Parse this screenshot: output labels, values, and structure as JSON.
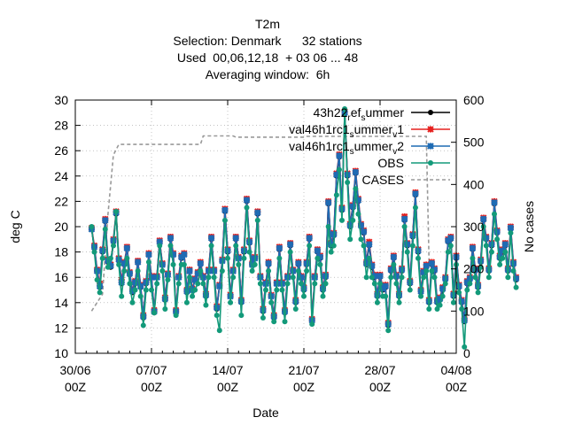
{
  "chart_data": {
    "type": "line",
    "title_lines": [
      "T2m",
      "Selection: Denmark      32 stations",
      "Used  00,06,12,18  + 03 06 ... 48",
      "Averaging window:  6h"
    ],
    "xlabel": "Date",
    "ylabel": "deg C",
    "y2label": "No cases",
    "x_ticks": [
      {
        "date": "2022-06-30",
        "line1": "30/06",
        "line2": "00Z"
      },
      {
        "date": "2022-07-07",
        "line1": "07/07",
        "line2": "00Z"
      },
      {
        "date": "2022-07-14",
        "line1": "14/07",
        "line2": "00Z"
      },
      {
        "date": "2022-07-21",
        "line1": "21/07",
        "line2": "00Z"
      },
      {
        "date": "2022-07-28",
        "line1": "28/07",
        "line2": "00Z"
      },
      {
        "date": "2022-08-04",
        "line1": "04/08",
        "line2": "00Z"
      }
    ],
    "xlim": [
      "2022-06-30T00:00",
      "2022-08-04T00:00"
    ],
    "ylim": [
      10,
      30
    ],
    "y_ticks": [
      10,
      12,
      14,
      16,
      18,
      20,
      22,
      24,
      26,
      28,
      30
    ],
    "y2lim": [
      0,
      600
    ],
    "y2_ticks": [
      0,
      100,
      200,
      300,
      400,
      500,
      600
    ],
    "grid": true,
    "legend_position": "top-right",
    "x_start": "2022-07-01T12:00",
    "x_step_hours": 6,
    "series": [
      {
        "name": "43h22 ref_summer",
        "legend_base": "43h22",
        "legend_parts": [
          [
            "r",
            "sub"
          ],
          [
            "ef",
            "base"
          ],
          [
            "s",
            "sub"
          ],
          [
            "ummer",
            "base"
          ]
        ],
        "color": "#000000",
        "marker": "circle",
        "values": [
          19.8,
          18.3,
          16.5,
          15.2,
          18.0,
          20.4,
          17.2,
          16.8,
          18.8,
          21.0,
          17.3,
          15.5,
          17.0,
          18.3,
          16.2,
          14.8,
          15.5,
          17.2,
          15.2,
          12.8,
          15.5,
          17.8,
          16.0,
          13.2,
          16.0,
          18.8,
          17.0,
          14.2,
          16.2,
          19.0,
          17.8,
          13.3,
          16.0,
          17.5,
          17.8,
          14.8,
          16.5,
          15.0,
          15.8,
          16.3,
          17.0,
          16.0,
          14.5,
          16.5,
          19.0,
          16.5,
          13.5,
          15.3,
          17.3,
          21.2,
          18.0,
          14.5,
          16.5,
          19.0,
          17.5,
          14.0,
          18.0,
          22.0,
          18.7,
          17.0,
          17.5,
          21.0,
          16.0,
          13.3,
          15.5,
          17.0,
          14.5,
          12.8,
          15.5,
          18.2,
          15.5,
          13.2,
          16.0,
          18.5,
          16.5,
          14.0,
          17.0,
          16.0,
          15.0,
          17.0,
          19.0,
          12.5,
          16.0,
          18.0,
          17.5,
          15.0,
          16.0,
          21.8,
          18.5,
          19.3,
          24.0,
          25.5,
          21.3,
          28.9,
          24.0,
          20.0,
          21.5,
          24.2,
          22.0,
          20.0,
          19.5,
          17.0,
          18.5,
          16.8,
          16.0,
          14.5,
          16.0,
          15.0,
          15.2,
          12.2,
          16.5,
          17.5,
          16.0,
          14.5,
          16.5,
          20.5,
          18.5,
          15.5,
          19.2,
          22.5,
          18.0,
          14.8,
          16.3,
          16.8,
          14.0,
          17.0,
          16.5,
          14.0,
          14.2,
          15.0,
          15.8,
          18.8,
          19.0,
          14.5,
          17.5,
          15.2,
          14.0,
          12.5,
          15.5,
          15.8,
          18.2,
          16.5,
          15.2,
          17.2,
          20.5,
          19.0,
          16.5,
          18.5,
          21.8,
          19.5,
          17.5,
          18.0,
          18.5,
          16.5,
          19.8,
          17.0,
          15.8
        ]
      },
      {
        "name": "val46h1rc1_summer_v1",
        "legend_base": "val46h1rc1",
        "legend_parts": [
          [
            "s",
            "sub"
          ],
          [
            "ummer",
            "base"
          ],
          [
            "v",
            "sub"
          ],
          [
            "1",
            "base"
          ]
        ],
        "color": "#e6201e",
        "marker": "cross",
        "values": [
          19.9,
          18.5,
          16.6,
          15.5,
          18.2,
          20.6,
          17.4,
          17.0,
          19.0,
          21.2,
          17.5,
          15.8,
          17.2,
          18.4,
          16.4,
          15.0,
          15.7,
          17.3,
          15.4,
          13.0,
          15.7,
          17.9,
          16.1,
          13.4,
          16.1,
          18.9,
          17.1,
          14.4,
          16.3,
          19.2,
          17.9,
          13.4,
          16.1,
          17.7,
          17.9,
          15.0,
          16.6,
          15.1,
          15.9,
          16.4,
          17.2,
          16.1,
          14.7,
          16.6,
          19.2,
          16.6,
          13.7,
          15.4,
          17.4,
          21.4,
          18.2,
          14.6,
          16.6,
          19.2,
          17.6,
          14.2,
          18.2,
          22.2,
          18.9,
          17.1,
          17.6,
          21.2,
          16.1,
          13.5,
          15.6,
          17.2,
          14.6,
          13.0,
          15.6,
          18.4,
          15.6,
          13.4,
          16.1,
          18.7,
          16.6,
          14.2,
          17.2,
          16.1,
          15.2,
          17.2,
          19.2,
          12.7,
          16.1,
          18.2,
          17.7,
          15.2,
          16.2,
          22.0,
          18.7,
          19.5,
          24.2,
          25.7,
          21.5,
          29.1,
          24.2,
          20.2,
          21.7,
          24.4,
          22.2,
          20.2,
          19.7,
          17.2,
          18.8,
          17.0,
          16.2,
          14.7,
          16.2,
          15.2,
          15.4,
          12.4,
          16.7,
          17.7,
          16.2,
          14.7,
          16.7,
          20.8,
          18.7,
          15.7,
          19.4,
          22.7,
          18.2,
          15.0,
          16.5,
          17.0,
          14.2,
          17.2,
          16.7,
          14.2,
          14.4,
          15.2,
          16.0,
          19.0,
          19.2,
          14.7,
          17.7,
          15.4,
          14.2,
          12.7,
          15.7,
          16.0,
          18.4,
          16.7,
          15.4,
          17.4,
          20.7,
          19.2,
          16.7,
          18.7,
          22.0,
          19.7,
          17.7,
          18.2,
          18.7,
          16.7,
          20.0,
          17.2,
          16.0
        ]
      },
      {
        "name": "val46h1rc1_summer_v2",
        "legend_base": "val46h1rc1",
        "legend_parts": [
          [
            "s",
            "sub"
          ],
          [
            "ummer",
            "base"
          ],
          [
            "v",
            "sub"
          ],
          [
            "2",
            "base"
          ]
        ],
        "color": "#1e6bb4",
        "marker": "star",
        "values": [
          19.8,
          18.4,
          16.5,
          15.3,
          18.1,
          20.5,
          17.3,
          16.9,
          18.9,
          21.1,
          17.4,
          15.6,
          17.1,
          18.3,
          16.3,
          14.9,
          15.6,
          17.2,
          15.3,
          12.9,
          15.6,
          17.8,
          16.0,
          13.3,
          16.0,
          18.8,
          17.0,
          14.3,
          16.2,
          19.1,
          17.8,
          13.3,
          16.0,
          17.6,
          17.8,
          14.9,
          16.5,
          15.0,
          15.8,
          16.3,
          17.1,
          16.0,
          14.6,
          16.5,
          19.1,
          16.5,
          13.6,
          15.3,
          17.3,
          21.3,
          18.1,
          14.5,
          16.5,
          19.1,
          17.5,
          14.1,
          18.1,
          22.1,
          18.8,
          17.0,
          17.5,
          21.1,
          16.0,
          13.4,
          15.5,
          17.1,
          14.5,
          12.9,
          15.5,
          18.3,
          15.5,
          13.3,
          16.0,
          18.6,
          16.5,
          14.1,
          17.1,
          16.0,
          15.1,
          17.1,
          19.1,
          12.6,
          16.0,
          18.1,
          17.6,
          15.1,
          16.1,
          21.9,
          18.6,
          19.4,
          24.1,
          25.6,
          21.4,
          29.0,
          24.1,
          20.1,
          21.6,
          24.3,
          22.1,
          20.1,
          19.6,
          17.1,
          18.6,
          16.9,
          16.1,
          14.6,
          16.1,
          15.1,
          15.3,
          12.3,
          16.6,
          17.6,
          16.1,
          14.6,
          16.6,
          20.6,
          18.6,
          15.6,
          19.3,
          22.6,
          18.1,
          14.9,
          16.4,
          16.9,
          14.1,
          17.1,
          16.6,
          14.1,
          14.3,
          15.1,
          15.9,
          18.9,
          19.1,
          14.6,
          17.6,
          15.3,
          14.1,
          12.6,
          15.6,
          15.9,
          18.3,
          16.6,
          15.3,
          17.3,
          20.6,
          19.1,
          16.6,
          18.6,
          21.9,
          19.6,
          17.6,
          18.1,
          18.6,
          16.6,
          19.9,
          17.1,
          15.9
        ]
      },
      {
        "name": "OBS",
        "legend_base": "OBS",
        "legend_parts": [],
        "color": "#139a7a",
        "marker": "circle",
        "values": [
          20.0,
          18.0,
          15.8,
          14.8,
          17.5,
          19.8,
          16.8,
          17.5,
          18.5,
          21.2,
          17.0,
          14.5,
          16.5,
          17.5,
          15.5,
          14.0,
          15.0,
          16.5,
          14.5,
          12.2,
          15.0,
          17.2,
          15.0,
          13.2,
          15.5,
          18.5,
          16.5,
          13.5,
          15.8,
          18.5,
          17.0,
          13.0,
          15.5,
          17.0,
          17.0,
          14.0,
          16.0,
          14.5,
          15.0,
          15.5,
          16.5,
          15.5,
          13.8,
          16.0,
          18.5,
          16.0,
          13.0,
          11.8,
          16.5,
          20.5,
          17.5,
          14.0,
          16.0,
          18.5,
          17.0,
          13.0,
          17.5,
          21.5,
          18.0,
          16.5,
          17.0,
          20.5,
          15.5,
          12.8,
          15.0,
          16.5,
          14.0,
          12.5,
          15.0,
          17.5,
          15.0,
          12.5,
          15.5,
          18.0,
          16.0,
          13.5,
          16.5,
          15.5,
          14.5,
          16.5,
          18.5,
          12.3,
          15.5,
          17.5,
          17.0,
          14.5,
          15.5,
          20.0,
          18.0,
          18.5,
          22.5,
          24.5,
          20.5,
          29.3,
          23.5,
          19.0,
          20.5,
          23.0,
          21.0,
          19.0,
          18.5,
          16.0,
          17.5,
          16.0,
          15.5,
          14.0,
          15.5,
          14.5,
          14.5,
          11.8,
          16.0,
          17.0,
          15.5,
          14.0,
          16.0,
          20.0,
          18.0,
          15.0,
          18.5,
          21.5,
          17.5,
          14.5,
          16.0,
          16.5,
          13.5,
          16.5,
          16.0,
          13.5,
          13.8,
          14.5,
          15.5,
          18.0,
          18.5,
          14.0,
          17.0,
          14.8,
          13.5,
          10.5,
          15.0,
          15.5,
          17.5,
          16.0,
          14.8,
          16.8,
          20.0,
          18.5,
          16.0,
          18.0,
          21.0,
          19.0,
          17.0,
          17.5,
          18.0,
          16.0,
          19.5,
          16.5,
          15.2
        ]
      }
    ],
    "cases_series": {
      "name": "CASES",
      "color": "#999999",
      "axis": "y2",
      "points": [
        {
          "x": "2022-07-01T12:00",
          "y": 100
        },
        {
          "x": "2022-07-02T12:00",
          "y": 140
        },
        {
          "x": "2022-07-03T00:00",
          "y": 330
        },
        {
          "x": "2022-07-03T12:00",
          "y": 470
        },
        {
          "x": "2022-07-04T00:00",
          "y": 495
        },
        {
          "x": "2022-07-11T12:00",
          "y": 495
        },
        {
          "x": "2022-07-11T18:00",
          "y": 515
        },
        {
          "x": "2022-07-14T12:00",
          "y": 515
        },
        {
          "x": "2022-07-14T18:00",
          "y": 512
        },
        {
          "x": "2022-07-21T00:00",
          "y": 512
        },
        {
          "x": "2022-07-21T06:00",
          "y": 514
        },
        {
          "x": "2022-08-01T06:00",
          "y": 514
        },
        {
          "x": "2022-08-01T12:00",
          "y": 215
        }
      ]
    }
  }
}
